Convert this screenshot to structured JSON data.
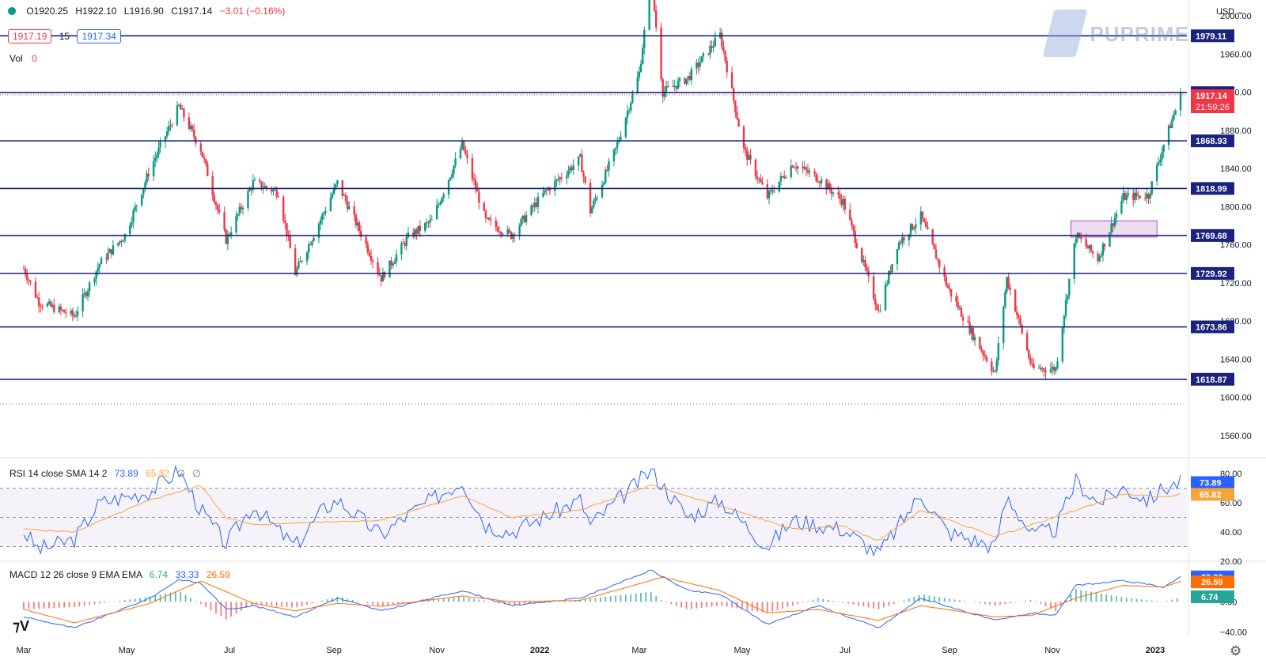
{
  "header": {
    "open": "O1920.25",
    "high": "H1922.10",
    "low": "L1916.90",
    "close": "C1917.14",
    "change": "−3.01 (−0.16%)",
    "bid": "1917.19",
    "spread": "15",
    "ask": "1917.34",
    "vol_label": "Vol",
    "vol_value": "0",
    "currency": "USD",
    "brand": "PUPRIME"
  },
  "colors": {
    "up": "#089981",
    "down": "#f23645",
    "level": "#1a237e",
    "rsi": "#2962ff",
    "rsi_ma": "#f7a53a",
    "macd": "#2962ff",
    "signal": "#ff6d00"
  },
  "icons": {
    "logo": "tradingview-logo-icon",
    "settings": "gear-icon"
  },
  "chart_data": [
    {
      "type": "candlestick",
      "title": "",
      "xlabel": "",
      "ylabel": "",
      "ylim": [
        1540,
        2010
      ],
      "x_ticks": [
        "Mar",
        "May",
        "Jul",
        "Sep",
        "Nov",
        "2022",
        "Mar",
        "May",
        "Jul",
        "Sep",
        "Nov",
        "2023"
      ],
      "y_ticks": [
        1560,
        1600,
        1640,
        1680,
        1720,
        1760,
        1800,
        1840,
        1880,
        1920,
        1960,
        2000
      ],
      "last_price": "1917.14",
      "countdown": "21:59:26",
      "horizontal_levels": [
        "1979.11",
        "1919.48",
        "1868.93",
        "1818.99",
        "1769.68",
        "1729.92",
        "1673.86",
        "1618.87"
      ],
      "anchors": [
        {
          "x": "2021-03-01",
          "y": 1735
        },
        {
          "x": "2021-03-10",
          "y": 1700
        },
        {
          "x": "2021-03-31",
          "y": 1685
        },
        {
          "x": "2021-04-15",
          "y": 1740
        },
        {
          "x": "2021-04-30",
          "y": 1770
        },
        {
          "x": "2021-05-15",
          "y": 1840
        },
        {
          "x": "2021-06-01",
          "y": 1905
        },
        {
          "x": "2021-06-14",
          "y": 1860
        },
        {
          "x": "2021-06-29",
          "y": 1765
        },
        {
          "x": "2021-07-15",
          "y": 1825
        },
        {
          "x": "2021-07-30",
          "y": 1815
        },
        {
          "x": "2021-08-09",
          "y": 1730
        },
        {
          "x": "2021-08-25",
          "y": 1790
        },
        {
          "x": "2021-09-03",
          "y": 1825
        },
        {
          "x": "2021-09-20",
          "y": 1760
        },
        {
          "x": "2021-09-29",
          "y": 1725
        },
        {
          "x": "2021-10-15",
          "y": 1768
        },
        {
          "x": "2021-10-29",
          "y": 1785
        },
        {
          "x": "2021-11-16",
          "y": 1865
        },
        {
          "x": "2021-11-30",
          "y": 1785
        },
        {
          "x": "2021-12-15",
          "y": 1770
        },
        {
          "x": "2022-01-04",
          "y": 1815
        },
        {
          "x": "2022-01-25",
          "y": 1850
        },
        {
          "x": "2022-01-31",
          "y": 1795
        },
        {
          "x": "2022-02-15",
          "y": 1860
        },
        {
          "x": "2022-03-01",
          "y": 1940
        },
        {
          "x": "2022-03-08",
          "y": 2040
        },
        {
          "x": "2022-03-15",
          "y": 1920
        },
        {
          "x": "2022-03-30",
          "y": 1935
        },
        {
          "x": "2022-04-18",
          "y": 1980
        },
        {
          "x": "2022-05-02",
          "y": 1860
        },
        {
          "x": "2022-05-16",
          "y": 1810
        },
        {
          "x": "2022-05-31",
          "y": 1845
        },
        {
          "x": "2022-06-15",
          "y": 1830
        },
        {
          "x": "2022-06-30",
          "y": 1805
        },
        {
          "x": "2022-07-21",
          "y": 1690
        },
        {
          "x": "2022-08-01",
          "y": 1760
        },
        {
          "x": "2022-08-15",
          "y": 1790
        },
        {
          "x": "2022-08-31",
          "y": 1715
        },
        {
          "x": "2022-09-15",
          "y": 1665
        },
        {
          "x": "2022-09-28",
          "y": 1625
        },
        {
          "x": "2022-10-05",
          "y": 1725
        },
        {
          "x": "2022-10-20",
          "y": 1630
        },
        {
          "x": "2022-11-03",
          "y": 1630
        },
        {
          "x": "2022-11-15",
          "y": 1770
        },
        {
          "x": "2022-11-28",
          "y": 1745
        },
        {
          "x": "2022-12-13",
          "y": 1810
        },
        {
          "x": "2022-12-28",
          "y": 1812
        },
        {
          "x": "2023-01-06",
          "y": 1865
        },
        {
          "x": "2023-01-16",
          "y": 1917
        }
      ]
    },
    {
      "type": "line",
      "title": "RSI 14 close SMA 14 2",
      "legend_values": [
        "73.89",
        "65.82",
        "∅",
        "∅"
      ],
      "ylim": [
        20,
        85
      ],
      "y_ticks": [
        20,
        40,
        60,
        80
      ],
      "bands": [
        30,
        50,
        70
      ],
      "last_rsi": "73.89",
      "last_ma": "65.82",
      "series": [
        {
          "name": "RSI",
          "anchors": [
            {
              "x": "2021-03-01",
              "y": 40
            },
            {
              "x": "2021-03-10",
              "y": 28
            },
            {
              "x": "2021-03-31",
              "y": 35
            },
            {
              "x": "2021-04-15",
              "y": 60
            },
            {
              "x": "2021-05-15",
              "y": 68
            },
            {
              "x": "2021-06-01",
              "y": 82
            },
            {
              "x": "2021-06-14",
              "y": 55
            },
            {
              "x": "2021-06-29",
              "y": 32
            },
            {
              "x": "2021-07-15",
              "y": 58
            },
            {
              "x": "2021-08-09",
              "y": 30
            },
            {
              "x": "2021-08-25",
              "y": 55
            },
            {
              "x": "2021-09-03",
              "y": 62
            },
            {
              "x": "2021-09-29",
              "y": 38
            },
            {
              "x": "2021-10-15",
              "y": 52
            },
            {
              "x": "2021-11-16",
              "y": 75
            },
            {
              "x": "2021-11-30",
              "y": 45
            },
            {
              "x": "2021-12-15",
              "y": 40
            },
            {
              "x": "2022-01-25",
              "y": 62
            },
            {
              "x": "2022-01-31",
              "y": 45
            },
            {
              "x": "2022-03-08",
              "y": 82
            },
            {
              "x": "2022-03-30",
              "y": 50
            },
            {
              "x": "2022-04-18",
              "y": 62
            },
            {
              "x": "2022-05-16",
              "y": 30
            },
            {
              "x": "2022-05-31",
              "y": 48
            },
            {
              "x": "2022-06-30",
              "y": 42
            },
            {
              "x": "2022-07-21",
              "y": 25
            },
            {
              "x": "2022-08-15",
              "y": 66
            },
            {
              "x": "2022-08-31",
              "y": 40
            },
            {
              "x": "2022-09-28",
              "y": 30
            },
            {
              "x": "2022-10-05",
              "y": 65
            },
            {
              "x": "2022-10-20",
              "y": 38
            },
            {
              "x": "2022-11-03",
              "y": 42
            },
            {
              "x": "2022-11-15",
              "y": 75
            },
            {
              "x": "2022-11-28",
              "y": 60
            },
            {
              "x": "2022-12-13",
              "y": 70
            },
            {
              "x": "2022-12-28",
              "y": 62
            },
            {
              "x": "2023-01-06",
              "y": 70
            },
            {
              "x": "2023-01-16",
              "y": 74
            }
          ]
        },
        {
          "name": "SMA",
          "anchors": [
            {
              "x": "2021-03-01",
              "y": 42
            },
            {
              "x": "2021-03-31",
              "y": 40
            },
            {
              "x": "2021-05-15",
              "y": 62
            },
            {
              "x": "2021-06-14",
              "y": 72
            },
            {
              "x": "2021-06-29",
              "y": 50
            },
            {
              "x": "2021-07-15",
              "y": 45
            },
            {
              "x": "2021-08-25",
              "y": 47
            },
            {
              "x": "2021-09-29",
              "y": 48
            },
            {
              "x": "2021-11-16",
              "y": 65
            },
            {
              "x": "2021-12-15",
              "y": 50
            },
            {
              "x": "2022-01-25",
              "y": 55
            },
            {
              "x": "2022-03-08",
              "y": 72
            },
            {
              "x": "2022-04-18",
              "y": 58
            },
            {
              "x": "2022-05-31",
              "y": 42
            },
            {
              "x": "2022-06-30",
              "y": 44
            },
            {
              "x": "2022-07-21",
              "y": 34
            },
            {
              "x": "2022-08-15",
              "y": 55
            },
            {
              "x": "2022-09-28",
              "y": 37
            },
            {
              "x": "2022-10-20",
              "y": 45
            },
            {
              "x": "2022-11-15",
              "y": 55
            },
            {
              "x": "2022-12-13",
              "y": 66
            },
            {
              "x": "2023-01-06",
              "y": 64
            },
            {
              "x": "2023-01-16",
              "y": 66
            }
          ]
        }
      ]
    },
    {
      "type": "line",
      "title": "MACD 12 26 close 9 EMA EMA",
      "legend_values": [
        "6.74",
        "33.33",
        "26.59"
      ],
      "ylim": [
        -45,
        50
      ],
      "y_ticks": [
        -40,
        0
      ],
      "y_tick_labels": [
        "−40.00",
        "0.00"
      ],
      "last_values": [
        "33.33",
        "26.59",
        "6.74"
      ],
      "series": [
        {
          "name": "MACD",
          "anchors": [
            {
              "x": "2021-03-01",
              "y": -20
            },
            {
              "x": "2021-03-31",
              "y": -35
            },
            {
              "x": "2021-05-15",
              "y": 5
            },
            {
              "x": "2021-06-01",
              "y": 30
            },
            {
              "x": "2021-06-14",
              "y": 25
            },
            {
              "x": "2021-06-29",
              "y": -10
            },
            {
              "x": "2021-07-15",
              "y": -5
            },
            {
              "x": "2021-08-09",
              "y": -20
            },
            {
              "x": "2021-09-03",
              "y": 5
            },
            {
              "x": "2021-09-29",
              "y": -12
            },
            {
              "x": "2021-11-16",
              "y": 15
            },
            {
              "x": "2021-12-15",
              "y": -5
            },
            {
              "x": "2022-01-25",
              "y": 5
            },
            {
              "x": "2022-03-08",
              "y": 42
            },
            {
              "x": "2022-03-30",
              "y": 15
            },
            {
              "x": "2022-04-18",
              "y": 10
            },
            {
              "x": "2022-05-16",
              "y": -30
            },
            {
              "x": "2022-06-15",
              "y": -5
            },
            {
              "x": "2022-07-21",
              "y": -35
            },
            {
              "x": "2022-08-15",
              "y": 5
            },
            {
              "x": "2022-09-28",
              "y": -25
            },
            {
              "x": "2022-10-20",
              "y": -15
            },
            {
              "x": "2022-11-03",
              "y": -18
            },
            {
              "x": "2022-11-15",
              "y": 22
            },
            {
              "x": "2022-12-13",
              "y": 28
            },
            {
              "x": "2023-01-06",
              "y": 20
            },
            {
              "x": "2023-01-16",
              "y": 33
            }
          ]
        },
        {
          "name": "Signal",
          "anchors": [
            {
              "x": "2021-03-01",
              "y": -10
            },
            {
              "x": "2021-03-31",
              "y": -28
            },
            {
              "x": "2021-05-15",
              "y": -2
            },
            {
              "x": "2021-06-14",
              "y": 28
            },
            {
              "x": "2021-07-15",
              "y": -2
            },
            {
              "x": "2021-08-09",
              "y": -12
            },
            {
              "x": "2021-09-03",
              "y": -2
            },
            {
              "x": "2021-09-29",
              "y": -6
            },
            {
              "x": "2021-11-16",
              "y": 8
            },
            {
              "x": "2021-12-15",
              "y": 0
            },
            {
              "x": "2022-01-25",
              "y": 2
            },
            {
              "x": "2022-03-15",
              "y": 33
            },
            {
              "x": "2022-04-18",
              "y": 15
            },
            {
              "x": "2022-05-16",
              "y": -15
            },
            {
              "x": "2022-06-15",
              "y": -10
            },
            {
              "x": "2022-07-21",
              "y": -25
            },
            {
              "x": "2022-08-15",
              "y": -5
            },
            {
              "x": "2022-09-28",
              "y": -20
            },
            {
              "x": "2022-10-20",
              "y": -18
            },
            {
              "x": "2022-11-15",
              "y": 5
            },
            {
              "x": "2022-12-13",
              "y": 22
            },
            {
              "x": "2023-01-06",
              "y": 20
            },
            {
              "x": "2023-01-16",
              "y": 27
            }
          ]
        }
      ]
    }
  ]
}
